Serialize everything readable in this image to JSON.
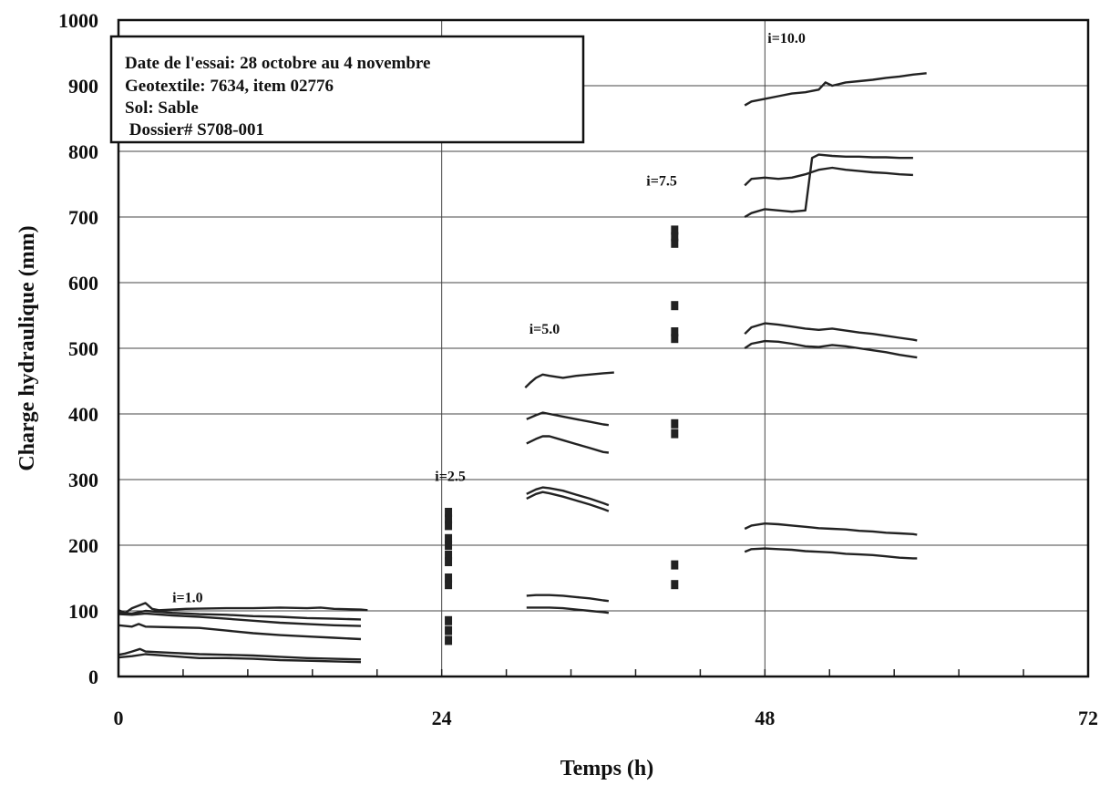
{
  "chart_data": {
    "type": "line",
    "xlabel": "Temps (h)",
    "ylabel": "Charge hydraulique (mm)",
    "xlim": [
      0,
      72
    ],
    "ylim": [
      0,
      1000
    ],
    "x_ticks": [
      "0",
      "24",
      "48",
      "72"
    ],
    "y_ticks": [
      "0",
      "100",
      "200",
      "300",
      "400",
      "500",
      "600",
      "700",
      "800",
      "900",
      "1000"
    ],
    "grid": true,
    "legend": "none",
    "info_box": [
      "Date de l'essai:  28 octobre au 4 novembre",
      "Geotextile:  7634, item 02776",
      "Sol:  Sable",
      " Dossier# S708-001"
    ],
    "annotations": [
      {
        "text": "i=1.0",
        "x": 4,
        "y": 113
      },
      {
        "text": "i=2.5",
        "x": 23.5,
        "y": 298
      },
      {
        "text": "i=5.0",
        "x": 30.5,
        "y": 522
      },
      {
        "text": "i=7.5",
        "x": 39.2,
        "y": 748
      },
      {
        "text": "i=10.0",
        "x": 48.2,
        "y": 965
      }
    ],
    "series": [
      {
        "values": [
          [
            0,
            101
          ],
          [
            0.5,
            97
          ],
          [
            1,
            104
          ],
          [
            1.5,
            108
          ],
          [
            2,
            112
          ],
          [
            2.5,
            103
          ],
          [
            3,
            101
          ],
          [
            5,
            103
          ],
          [
            8,
            104
          ],
          [
            10,
            104
          ],
          [
            12,
            105
          ],
          [
            14,
            104
          ],
          [
            15,
            105
          ],
          [
            16,
            103
          ],
          [
            18,
            102
          ],
          [
            18.5,
            101
          ]
        ]
      },
      {
        "values": [
          [
            0,
            97
          ],
          [
            1,
            96
          ],
          [
            2,
            100
          ],
          [
            4,
            97
          ],
          [
            6,
            95
          ],
          [
            8,
            94
          ],
          [
            10,
            92
          ],
          [
            12,
            91
          ],
          [
            14,
            89
          ],
          [
            16,
            88
          ],
          [
            18,
            87
          ]
        ]
      },
      {
        "values": [
          [
            0,
            95
          ],
          [
            1,
            94
          ],
          [
            2,
            96
          ],
          [
            4,
            93
          ],
          [
            6,
            91
          ],
          [
            8,
            88
          ],
          [
            10,
            85
          ],
          [
            12,
            82
          ],
          [
            14,
            80
          ],
          [
            16,
            78
          ],
          [
            18,
            77
          ]
        ]
      },
      {
        "values": [
          [
            0,
            78
          ],
          [
            1,
            76
          ],
          [
            1.5,
            80
          ],
          [
            2,
            76
          ],
          [
            4,
            75
          ],
          [
            6,
            74
          ],
          [
            8,
            70
          ],
          [
            10,
            66
          ],
          [
            12,
            63
          ],
          [
            14,
            61
          ],
          [
            16,
            59
          ],
          [
            18,
            57
          ]
        ]
      },
      {
        "values": [
          [
            0,
            33
          ],
          [
            0.5,
            35
          ],
          [
            1,
            38
          ],
          [
            1.6,
            42
          ],
          [
            2,
            38
          ],
          [
            4,
            36
          ],
          [
            6,
            34
          ],
          [
            8,
            33
          ],
          [
            10,
            32
          ],
          [
            12,
            30
          ],
          [
            14,
            28
          ],
          [
            16,
            27
          ],
          [
            18,
            26
          ]
        ]
      },
      {
        "values": [
          [
            0,
            29
          ],
          [
            1,
            31
          ],
          [
            2,
            34
          ],
          [
            4,
            31
          ],
          [
            6,
            28
          ],
          [
            8,
            28
          ],
          [
            10,
            27
          ],
          [
            12,
            25
          ],
          [
            14,
            24
          ],
          [
            16,
            23
          ],
          [
            18,
            22
          ]
        ]
      },
      {
        "values": [
          [
            30.2,
            440
          ],
          [
            30.6,
            448
          ],
          [
            31,
            455
          ],
          [
            31.5,
            460
          ],
          [
            32,
            458
          ],
          [
            33,
            455
          ],
          [
            34,
            458
          ],
          [
            35,
            460
          ],
          [
            36,
            462
          ],
          [
            36.8,
            463
          ]
        ]
      },
      {
        "values": [
          [
            30.3,
            392
          ],
          [
            31,
            398
          ],
          [
            31.5,
            402
          ],
          [
            32,
            400
          ],
          [
            33,
            396
          ],
          [
            34,
            392
          ],
          [
            35,
            388
          ],
          [
            36,
            384
          ],
          [
            36.4,
            383
          ]
        ]
      },
      {
        "values": [
          [
            30.3,
            355
          ],
          [
            31,
            362
          ],
          [
            31.5,
            366
          ],
          [
            32,
            366
          ],
          [
            33,
            360
          ],
          [
            34,
            354
          ],
          [
            35,
            348
          ],
          [
            36,
            342
          ],
          [
            36.4,
            341
          ]
        ]
      },
      {
        "values": [
          [
            30.3,
            278
          ],
          [
            31,
            285
          ],
          [
            31.5,
            288
          ],
          [
            32,
            287
          ],
          [
            33,
            283
          ],
          [
            34,
            277
          ],
          [
            35,
            271
          ],
          [
            36,
            264
          ],
          [
            36.4,
            261
          ]
        ]
      },
      {
        "values": [
          [
            30.3,
            271
          ],
          [
            31,
            278
          ],
          [
            31.5,
            281
          ],
          [
            32,
            279
          ],
          [
            33,
            274
          ],
          [
            34,
            268
          ],
          [
            35,
            262
          ],
          [
            36,
            255
          ],
          [
            36.4,
            252
          ]
        ]
      },
      {
        "values": [
          [
            30.3,
            123
          ],
          [
            31,
            124
          ],
          [
            32,
            124
          ],
          [
            33,
            123
          ],
          [
            34,
            121
          ],
          [
            35,
            119
          ],
          [
            36,
            116
          ],
          [
            36.4,
            115
          ]
        ]
      },
      {
        "values": [
          [
            30.3,
            105
          ],
          [
            31,
            105
          ],
          [
            32,
            105
          ],
          [
            33,
            104
          ],
          [
            34,
            102
          ],
          [
            35,
            100
          ],
          [
            36,
            98
          ],
          [
            36.4,
            97
          ]
        ]
      },
      {
        "values": [
          [
            46.5,
            870
          ],
          [
            47,
            876
          ],
          [
            48,
            880
          ],
          [
            49,
            884
          ],
          [
            50,
            888
          ],
          [
            51,
            890
          ],
          [
            52,
            894
          ],
          [
            52.5,
            905
          ],
          [
            53,
            900
          ],
          [
            54,
            905
          ],
          [
            55,
            907
          ],
          [
            56,
            909
          ],
          [
            57,
            912
          ],
          [
            58,
            914
          ],
          [
            59,
            917
          ],
          [
            60,
            919
          ]
        ]
      },
      {
        "values": [
          [
            46.5,
            748
          ],
          [
            47,
            758
          ],
          [
            48,
            760
          ],
          [
            49,
            758
          ],
          [
            50,
            760
          ],
          [
            51,
            765
          ],
          [
            52,
            772
          ],
          [
            53,
            775
          ],
          [
            54,
            772
          ],
          [
            55,
            770
          ],
          [
            56,
            768
          ],
          [
            57,
            767
          ],
          [
            58,
            765
          ],
          [
            59,
            764
          ]
        ]
      },
      {
        "values": [
          [
            46.5,
            700
          ],
          [
            47,
            706
          ],
          [
            48,
            712
          ],
          [
            49,
            710
          ],
          [
            50,
            708
          ],
          [
            51,
            710
          ],
          [
            51.5,
            790
          ],
          [
            52,
            795
          ],
          [
            53,
            793
          ],
          [
            54,
            792
          ],
          [
            55,
            792
          ],
          [
            56,
            791
          ],
          [
            57,
            791
          ],
          [
            58,
            790
          ],
          [
            59,
            790
          ]
        ]
      },
      {
        "values": [
          [
            46.5,
            522
          ],
          [
            47,
            532
          ],
          [
            48,
            538
          ],
          [
            49,
            536
          ],
          [
            50,
            533
          ],
          [
            51,
            530
          ],
          [
            52,
            528
          ],
          [
            53,
            530
          ],
          [
            54,
            527
          ],
          [
            55,
            524
          ],
          [
            56,
            522
          ],
          [
            57,
            519
          ],
          [
            58,
            516
          ],
          [
            59,
            513
          ],
          [
            59.3,
            512
          ]
        ]
      },
      {
        "values": [
          [
            46.5,
            500
          ],
          [
            47,
            507
          ],
          [
            48,
            511
          ],
          [
            49,
            510
          ],
          [
            50,
            507
          ],
          [
            51,
            503
          ],
          [
            52,
            502
          ],
          [
            53,
            505
          ],
          [
            54,
            503
          ],
          [
            55,
            500
          ],
          [
            56,
            497
          ],
          [
            57,
            494
          ],
          [
            58,
            490
          ],
          [
            59,
            487
          ],
          [
            59.3,
            486
          ]
        ]
      },
      {
        "values": [
          [
            46.5,
            225
          ],
          [
            47,
            230
          ],
          [
            48,
            233
          ],
          [
            49,
            232
          ],
          [
            50,
            230
          ],
          [
            51,
            228
          ],
          [
            52,
            226
          ],
          [
            53,
            225
          ],
          [
            54,
            224
          ],
          [
            55,
            222
          ],
          [
            56,
            221
          ],
          [
            57,
            219
          ],
          [
            58,
            218
          ],
          [
            59,
            217
          ],
          [
            59.3,
            216
          ]
        ]
      },
      {
        "values": [
          [
            46.5,
            190
          ],
          [
            47,
            194
          ],
          [
            48,
            195
          ],
          [
            49,
            194
          ],
          [
            50,
            193
          ],
          [
            51,
            191
          ],
          [
            52,
            190
          ],
          [
            53,
            189
          ],
          [
            54,
            187
          ],
          [
            55,
            186
          ],
          [
            56,
            185
          ],
          [
            57,
            183
          ],
          [
            58,
            181
          ],
          [
            59,
            180
          ],
          [
            59.3,
            180
          ]
        ]
      }
    ],
    "clusters": [
      {
        "x": 24.5,
        "y": [
          55,
          70,
          85,
          140,
          150,
          175,
          185,
          200,
          210,
          230,
          240,
          250
        ]
      },
      {
        "x": 41.3,
        "y": [
          140,
          170,
          370,
          385,
          515,
          525,
          565,
          660,
          670,
          680
        ]
      }
    ]
  }
}
